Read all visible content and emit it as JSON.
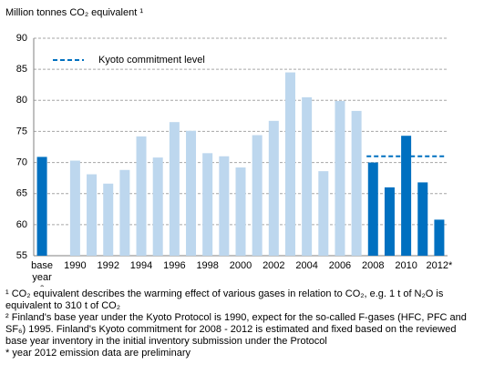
{
  "chart_data": {
    "type": "bar",
    "y_label": "Million tonnes CO₂ equivalent ¹",
    "categories": [
      "base year ²",
      null,
      "1990",
      null,
      "1992",
      null,
      "1994",
      null,
      "1996",
      null,
      "1998",
      null,
      "2000",
      null,
      "2002",
      null,
      "2004",
      null,
      "2006",
      null,
      "2008",
      null,
      "2010",
      null,
      "2012*"
    ],
    "values": [
      70.9,
      null,
      70.3,
      68.1,
      66.6,
      68.8,
      74.2,
      70.8,
      76.5,
      75.1,
      71.5,
      71.0,
      69.2,
      74.4,
      76.7,
      84.5,
      80.5,
      68.6,
      79.9,
      78.3,
      70.0,
      66.0,
      74.3,
      66.8,
      60.8
    ],
    "colors": [
      "#0070c0",
      null,
      "#bdd7ee",
      "#bdd7ee",
      "#bdd7ee",
      "#bdd7ee",
      "#bdd7ee",
      "#bdd7ee",
      "#bdd7ee",
      "#bdd7ee",
      "#bdd7ee",
      "#bdd7ee",
      "#bdd7ee",
      "#bdd7ee",
      "#bdd7ee",
      "#bdd7ee",
      "#bdd7ee",
      "#bdd7ee",
      "#bdd7ee",
      "#bdd7ee",
      "#0070c0",
      "#0070c0",
      "#0070c0",
      "#0070c0",
      "#0070c0"
    ],
    "ylim": [
      55,
      90
    ],
    "yticks": [
      55,
      60,
      65,
      70,
      75,
      80,
      85,
      90
    ],
    "grid": true,
    "reference_line": {
      "name": "Kyoto commitment level",
      "value": 71.0,
      "start_category": "2008",
      "end_category": "2012*",
      "color": "#0070c0"
    },
    "notes": [
      "¹ CO₂ equivalent describes the warming effect of various gases in relation to CO₂, e.g. 1 t of N₂O is equivalent to 310 t of CO₂",
      "² Finland's base year under the Kyoto Protocol is 1990, expect for the so-called F-gases (HFC, PFC and SF₆) 1995. Finland's Kyoto commitment for 2008 - 2012 is estimated and fixed based on the reviewed base year inventory in the initial inventory submission under the Protocol",
      "* year 2012 emission data are preliminary"
    ]
  }
}
